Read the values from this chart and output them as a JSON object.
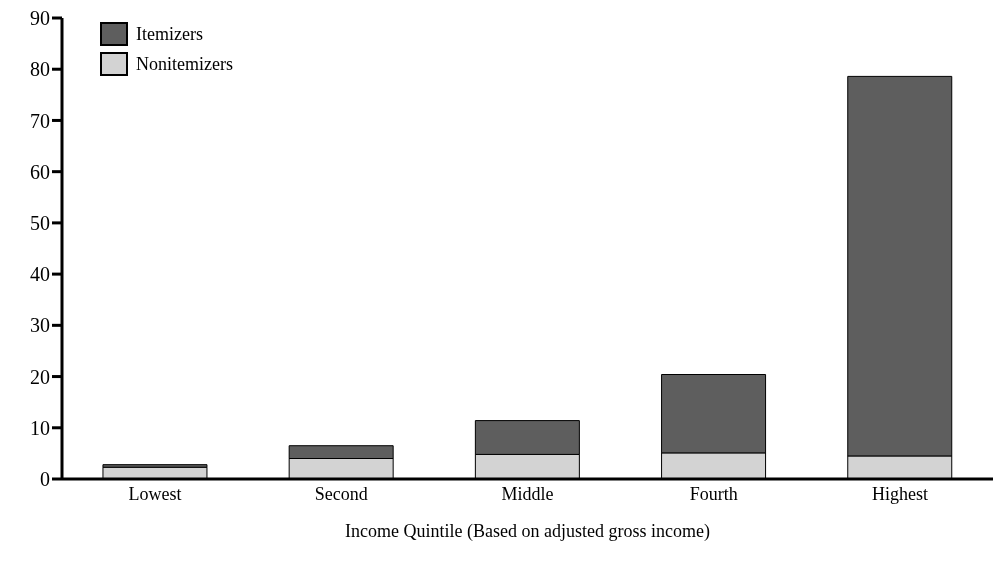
{
  "chart_data": {
    "type": "bar",
    "xlabel": "Income Quintile (Based on adjusted gross income)",
    "categories": [
      "Lowest",
      "Second",
      "Middle",
      "Fourth",
      "Highest"
    ],
    "stacked": true,
    "series": [
      {
        "name": "Nonitemizers",
        "color": "#d3d3d3",
        "values": [
          2.3,
          4.0,
          4.8,
          5.1,
          4.5
        ]
      },
      {
        "name": "Itemizers",
        "color": "#5e5e5e",
        "values": [
          0.5,
          2.5,
          6.6,
          15.3,
          74.1
        ]
      }
    ],
    "ylim": [
      0,
      90
    ],
    "yticks": [
      0,
      10,
      20,
      30,
      40,
      50,
      60,
      70,
      80,
      90
    ],
    "legend": "top left"
  }
}
